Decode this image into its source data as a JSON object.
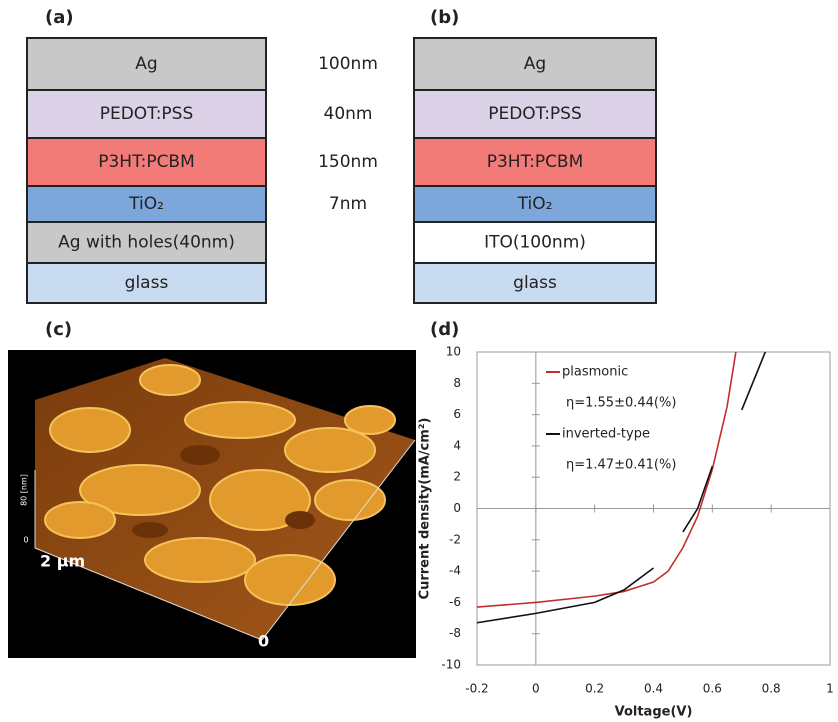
{
  "panels": {
    "a": {
      "label": "(a)",
      "layers": [
        {
          "name": "Ag",
          "color": "#c8c8c8"
        },
        {
          "name": "PEDOT:PSS",
          "color": "#dcd2e8"
        },
        {
          "name": "P3HT:PCBM",
          "color": "#f27b78"
        },
        {
          "name": "TiO₂",
          "color": "#7da6da"
        },
        {
          "name": "Ag with holes(40nm)",
          "color": "#c8c8c8"
        },
        {
          "name": "glass",
          "color": "#c9dbf0"
        }
      ],
      "thicknesses": [
        "100nm",
        "40nm",
        "150nm",
        "7nm"
      ]
    },
    "b": {
      "label": "(b)",
      "layers": [
        {
          "name": "Ag",
          "color": "#c8c8c8"
        },
        {
          "name": "PEDOT:PSS",
          "color": "#dcd2e8"
        },
        {
          "name": "P3HT:PCBM",
          "color": "#f27b78"
        },
        {
          "name": "TiO₂",
          "color": "#7da6da"
        },
        {
          "name": "ITO(100nm)",
          "color": "#ffffff"
        },
        {
          "name": "glass",
          "color": "#c9dbf0"
        }
      ]
    },
    "c": {
      "label": "(c)",
      "scale_label": "2 μm",
      "origin_label": "0",
      "z_label": "80 [nm]",
      "z_origin": "0"
    }
  },
  "chart_data": {
    "type": "line",
    "label": "(d)",
    "x_label": "Voltage(V)",
    "y_label": "Current density(mA/cm²)",
    "x": [
      -0.2,
      0,
      0.2,
      0.3,
      0.4,
      0.45,
      0.5,
      0.55,
      0.6,
      0.65,
      0.68,
      0.7,
      0.78
    ],
    "series": [
      {
        "name": "plasmonic",
        "color": "#c0302b",
        "values": [
          -6.3,
          -6.0,
          -5.6,
          -5.3,
          -4.7,
          -4.0,
          -2.5,
          -0.5,
          2.5,
          6.5,
          10,
          null,
          null
        ]
      },
      {
        "name": "inverted-type",
        "color": "#111111",
        "values": [
          -7.3,
          -6.7,
          -6.0,
          -5.2,
          -3.8,
          null,
          -1.5,
          0,
          2.7,
          null,
          null,
          6.3,
          10
        ]
      }
    ],
    "annotations": [
      "η=1.55±0.44(%)",
      "η=1.47±0.41(%)"
    ],
    "xlim": [
      -0.2,
      1
    ],
    "ylim": [
      -10,
      10
    ],
    "xticks": [
      -0.2,
      0,
      0.2,
      0.4,
      0.6,
      0.8,
      1
    ],
    "yticks": [
      -10,
      -8,
      -6,
      -4,
      -2,
      0,
      2,
      4,
      6,
      8,
      10
    ]
  }
}
